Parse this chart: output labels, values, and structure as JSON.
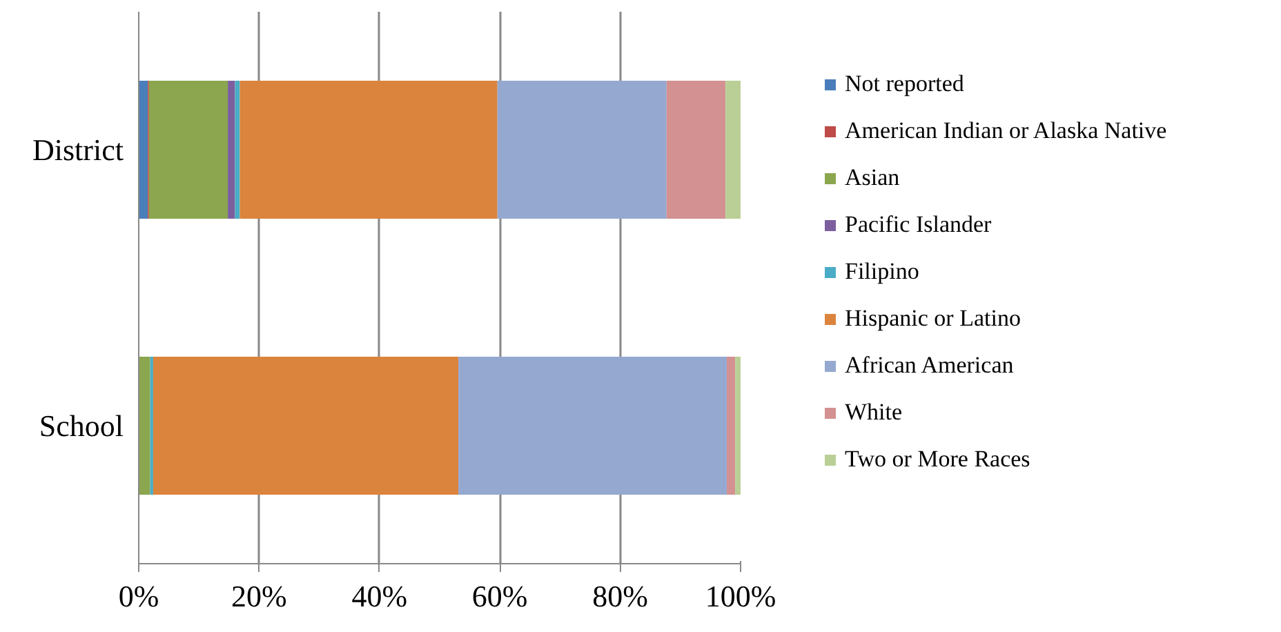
{
  "chart_data": {
    "type": "bar",
    "orientation": "horizontal",
    "stacked": true,
    "categories": [
      "District",
      "School"
    ],
    "series": [
      {
        "name": "Not reported",
        "color": "#4a7ebb",
        "values": [
          1.5,
          0
        ]
      },
      {
        "name": "American Indian or Alaska Native",
        "color": "#be4b48",
        "values": [
          0.2,
          0
        ]
      },
      {
        "name": "Asian",
        "color": "#8ba64e",
        "values": [
          13.1,
          1.9
        ]
      },
      {
        "name": "Pacific Islander",
        "color": "#7d5fa0",
        "values": [
          1.2,
          0
        ]
      },
      {
        "name": "Filipino",
        "color": "#4aacc6",
        "values": [
          0.8,
          0.5
        ]
      },
      {
        "name": "Hispanic or Latino",
        "color": "#db843d",
        "values": [
          42.8,
          50.7
        ]
      },
      {
        "name": "African American",
        "color": "#95a9d0",
        "values": [
          28.1,
          44.6
        ]
      },
      {
        "name": "White",
        "color": "#d39191",
        "values": [
          9.8,
          1.4
        ]
      },
      {
        "name": "Two or More Races",
        "color": "#bacf96",
        "values": [
          2.5,
          0.9
        ]
      }
    ],
    "xlim": [
      0,
      100
    ],
    "xticks": [
      {
        "value": 0,
        "label": "0%"
      },
      {
        "value": 20,
        "label": "20%"
      },
      {
        "value": 40,
        "label": "40%"
      },
      {
        "value": 60,
        "label": "60%"
      },
      {
        "value": 80,
        "label": "80%"
      },
      {
        "value": 100,
        "label": "100%"
      }
    ],
    "grid": "x",
    "legend": "right"
  }
}
